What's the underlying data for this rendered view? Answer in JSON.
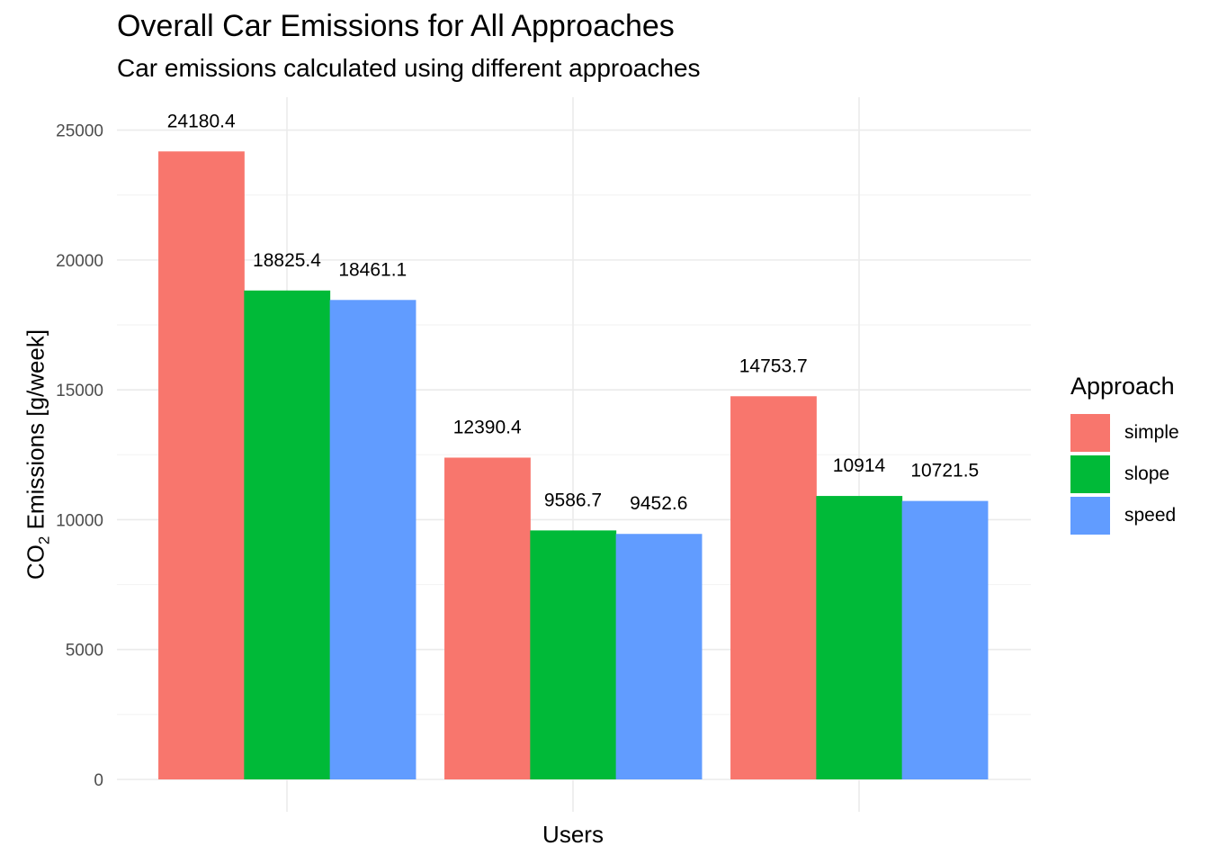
{
  "chart_data": {
    "type": "bar",
    "title": "Overall Car Emissions for All Approaches",
    "subtitle": "Car emissions calculated using different approaches",
    "xlabel": "Users",
    "ylabel_main": "CO",
    "ylabel_sub": "2",
    "ylabel_rest": " Emissions [g/week]",
    "ylim": [
      0,
      26250
    ],
    "yticks": [
      0,
      5000,
      10000,
      15000,
      20000,
      25000
    ],
    "ytick_labels": [
      "0",
      "5000",
      "10000",
      "15000",
      "20000",
      "25000"
    ],
    "categories": [
      "",
      "",
      ""
    ],
    "legend": {
      "title": "Approach",
      "position": "right"
    },
    "grid": true,
    "series": [
      {
        "name": "simple",
        "color": "#F8766D",
        "values": [
          24180.4,
          12390.4,
          14753.7
        ],
        "labels": [
          "24180.4",
          "12390.4",
          "14753.7"
        ]
      },
      {
        "name": "slope",
        "color": "#00BA38",
        "values": [
          18825.4,
          9586.7,
          10914
        ],
        "labels": [
          "18825.4",
          "9586.7",
          "10914"
        ]
      },
      {
        "name": "speed",
        "color": "#619CFF",
        "values": [
          18461.1,
          9452.6,
          10721.5
        ],
        "labels": [
          "18461.1",
          "9452.6",
          "10721.5"
        ]
      }
    ]
  }
}
